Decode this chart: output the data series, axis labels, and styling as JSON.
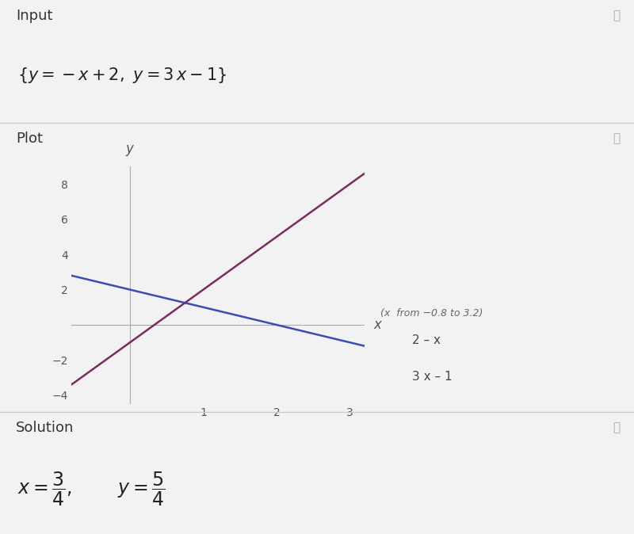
{
  "bg_color": "#f2f2f2",
  "panel_bg": "#ffffff",
  "header_bg": "#e8e8e8",
  "header_text_color": "#333333",
  "input_header": "Input",
  "plot_header": "Plot",
  "solution_header": "Solution",
  "x_range": [
    -0.8,
    3.2
  ],
  "y_range": [
    -4.5,
    9.0
  ],
  "x_ticks": [
    1,
    2,
    3
  ],
  "y_ticks": [
    -4,
    -2,
    2,
    4,
    6,
    8
  ],
  "line1_color": "#3a4db5",
  "line2_color": "#7a2c5e",
  "line1_label": "2 – x",
  "line2_label": "3 x – 1",
  "annotation": "(x  from −0.8 to 3.2)",
  "icon_color": "#aaaaaa",
  "sep_color": "#cccccc",
  "tick_color": "#555555",
  "axis_color": "#aaaaaa"
}
